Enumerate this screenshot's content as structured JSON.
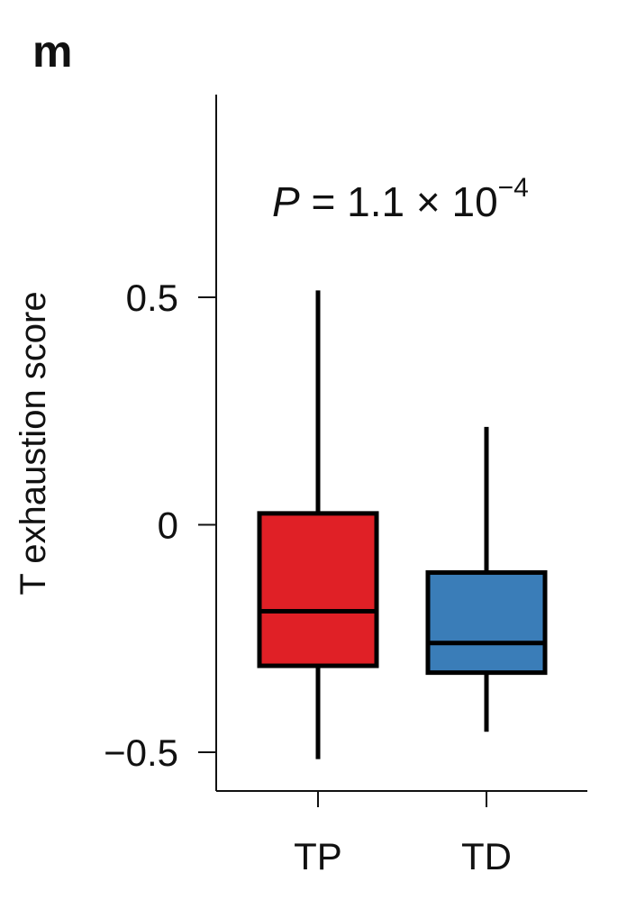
{
  "panel_label": "m",
  "chart_data": {
    "type": "box",
    "ylabel": "T exhaustion score",
    "ylim": [
      -0.59,
      0.95
    ],
    "yticks": [
      {
        "value": 0.5,
        "label": "0.5"
      },
      {
        "value": 0,
        "label": "0"
      },
      {
        "value": -0.5,
        "label": "−0.5"
      }
    ],
    "categories": [
      "TP",
      "TD"
    ],
    "boxes": [
      {
        "name": "TP",
        "color": "#e02026",
        "whislo": -0.515,
        "q1": -0.31,
        "median": -0.19,
        "q3": 0.025,
        "whishi": 0.515
      },
      {
        "name": "TD",
        "color": "#3a7db8",
        "whislo": -0.455,
        "q1": -0.325,
        "median": -0.26,
        "q3": -0.105,
        "whishi": 0.215
      }
    ],
    "annotation": {
      "prefix": "P",
      "mid": " = 1.1 × 10",
      "exponent": "−4"
    }
  }
}
